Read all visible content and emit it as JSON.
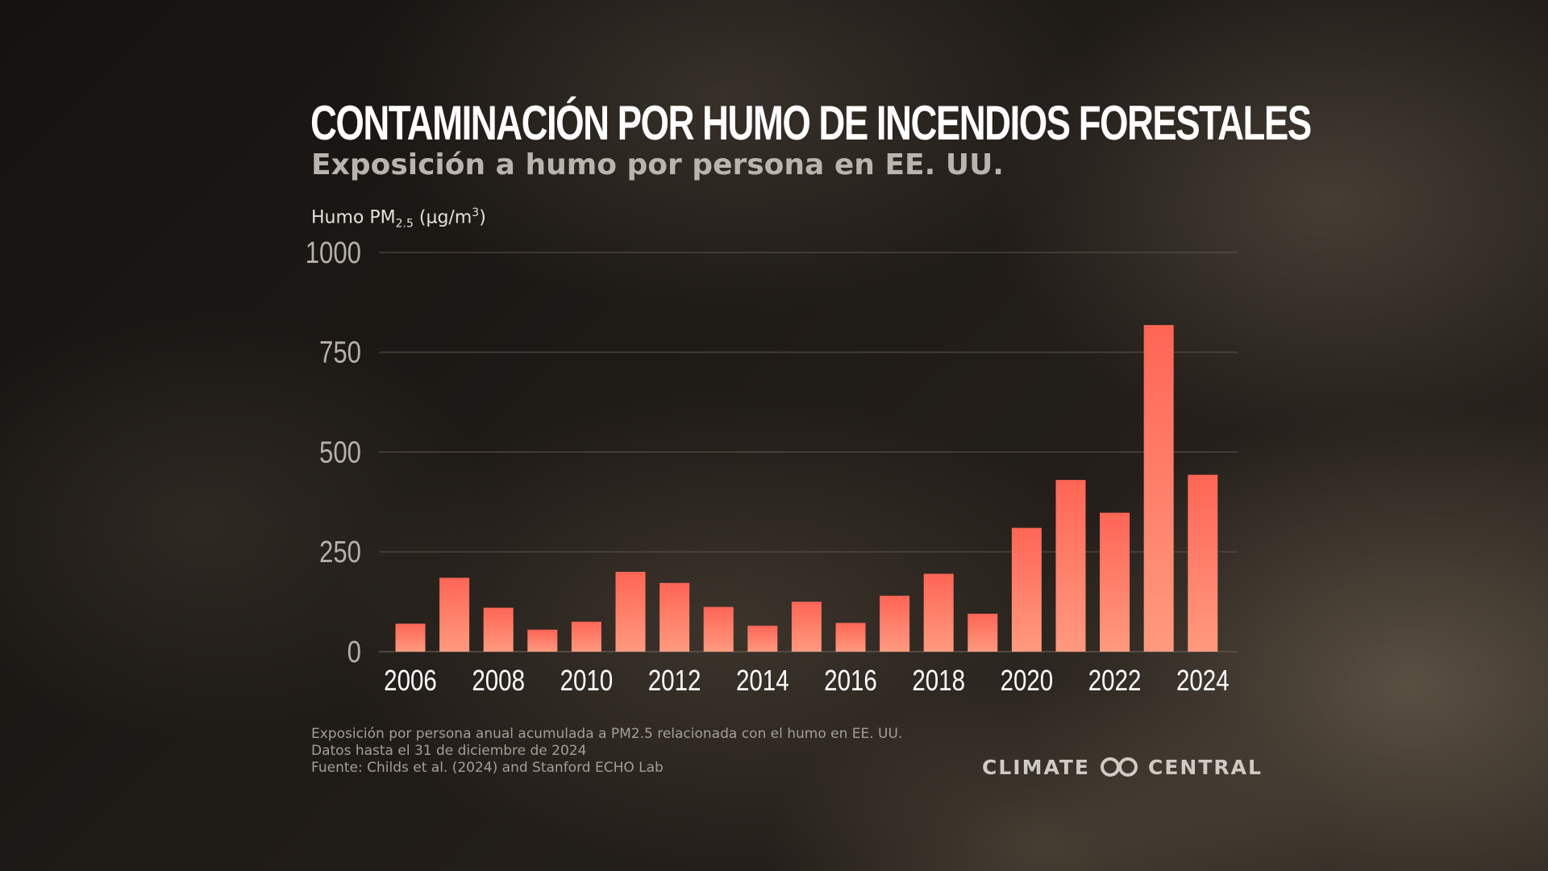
{
  "title": "Contaminación por humo de incendios forestales",
  "subtitle": "Exposición a humo por persona en EE. UU.",
  "ylabel": {
    "main": "Humo PM",
    "sub": "2.5",
    "unit_open": " (µg/m",
    "sup": "3",
    "unit_close": ")"
  },
  "notes": [
    "Exposición por persona anual acumulada a PM2.5 relacionada con el humo en EE. UU.",
    "Datos hasta el 31 de diciembre de 2024",
    "Fuente: Childs et al. (2024) and Stanford ECHO Lab"
  ],
  "logo": {
    "left_text": "CLIMATE",
    "right_text": "CENTRAL",
    "icon": "climate-central-logo-icon"
  },
  "colors": {
    "bar_top": "#ff6555",
    "bar_bottom": "#ff9a7e",
    "grid": "#5c564f",
    "ytick": "#b5b0a9",
    "xtick": "#ffffff"
  },
  "chart_data": {
    "type": "bar",
    "x": [
      2006,
      2007,
      2008,
      2009,
      2010,
      2011,
      2012,
      2013,
      2014,
      2015,
      2016,
      2017,
      2018,
      2019,
      2020,
      2021,
      2022,
      2023,
      2024
    ],
    "values": [
      70,
      185,
      110,
      55,
      75,
      200,
      172,
      112,
      65,
      125,
      72,
      140,
      195,
      95,
      310,
      430,
      348,
      818,
      443
    ],
    "xticks": [
      "2006",
      "2008",
      "2010",
      "2012",
      "2014",
      "2016",
      "2018",
      "2020",
      "2022",
      "2024"
    ],
    "yticks": [
      0,
      250,
      500,
      750,
      1000
    ],
    "ylim": [
      0,
      1000
    ],
    "grid": true
  }
}
